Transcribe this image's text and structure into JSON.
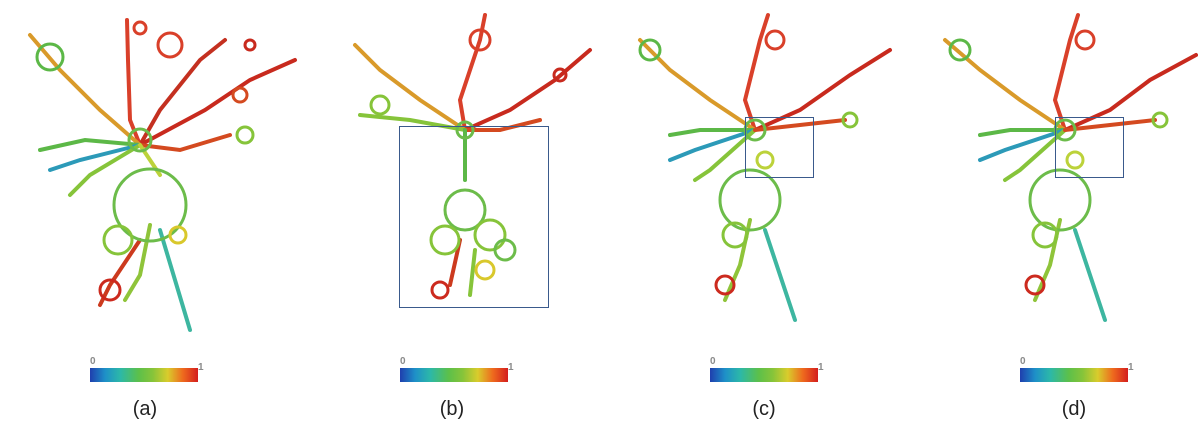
{
  "colorbar": {
    "min_label": "0",
    "max_label": "1"
  },
  "panels": [
    {
      "caption": "(a)"
    },
    {
      "caption": "(b)"
    },
    {
      "caption": "(c)"
    },
    {
      "caption": "(d)"
    }
  ],
  "colors": {
    "low": "#1f3fae",
    "mid": "#5cc04a",
    "high": "#d41e1e",
    "box": "#3a5a8c"
  }
}
